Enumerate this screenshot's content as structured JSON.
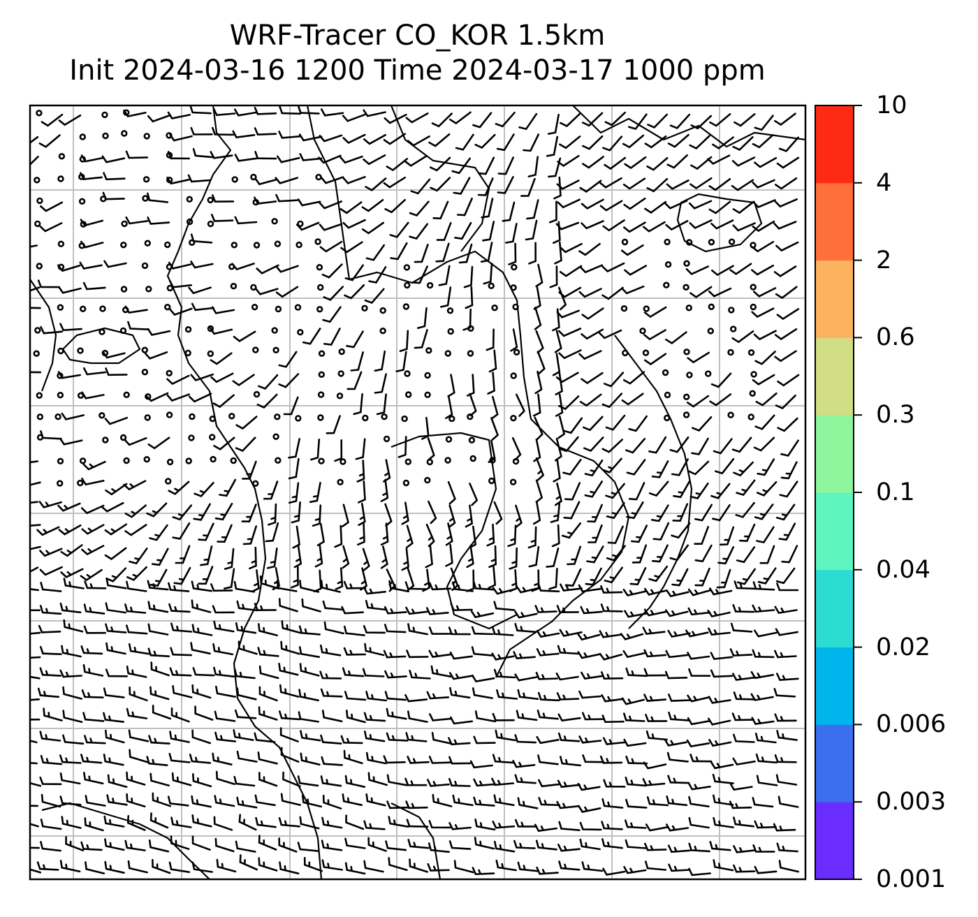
{
  "title": {
    "line1": "WRF-Tracer CO_KOR 1.5km",
    "line2": "Init 2024-03-16 1200 Time 2024-03-17 1000 ppm"
  },
  "colorbar": {
    "levels": [
      "0.001",
      "0.003",
      "0.006",
      "0.02",
      "0.04",
      "0.1",
      "0.3",
      "0.6",
      "2",
      "4",
      "10"
    ],
    "colors": [
      "#6a2cff",
      "#3b6ff0",
      "#00b4ec",
      "#2cdcd3",
      "#5ef5be",
      "#8ef59c",
      "#d1de83",
      "#fdb25f",
      "#ff6f39",
      "#ff2a14"
    ]
  },
  "map": {
    "grid": true,
    "grid_color": "#bfbfbf",
    "symbol_color": "#000000",
    "symbols": "wind barbs and calm-wind circles"
  }
}
